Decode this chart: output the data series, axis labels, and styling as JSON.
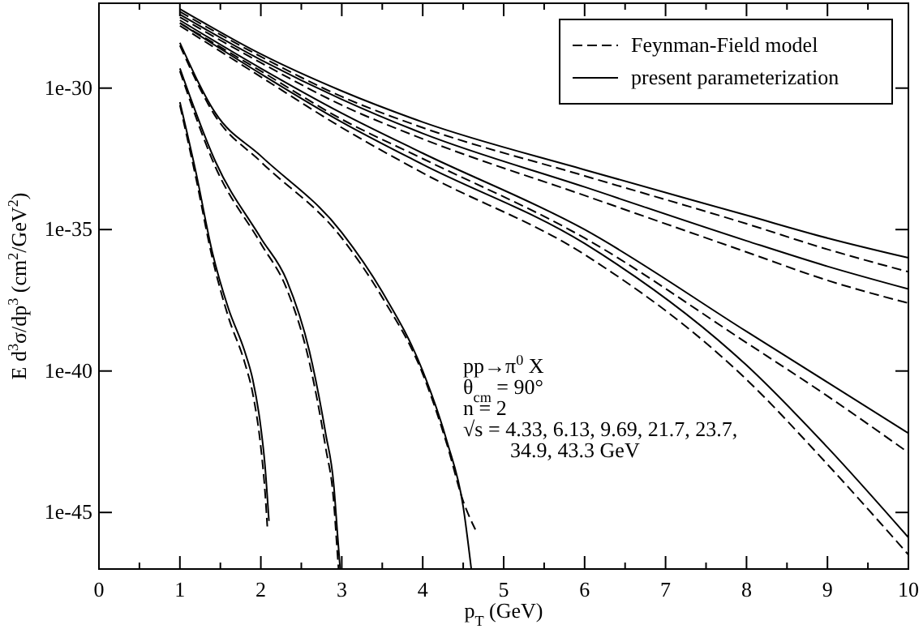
{
  "chart_data": {
    "type": "line",
    "xlabel": "p$_{T}$ (GeV)",
    "ylabel": "E d$^{3}$σ/dp$^{3}$ (cm$^{2}$/GeV$^{2}$)",
    "log": "y",
    "xlim": [
      0,
      10
    ],
    "ylim": [
      1e-47,
      1e-27
    ],
    "xticks": [
      0,
      {
        "value": 0.5,
        "label": null
      },
      1,
      {
        "value": 1.5,
        "label": null
      },
      2,
      {
        "value": 2.5,
        "label": null
      },
      3,
      {
        "value": 3.5,
        "label": null
      },
      4,
      {
        "value": 4.5,
        "label": null
      },
      5,
      {
        "value": 5.5,
        "label": null
      },
      6,
      {
        "value": 6.5,
        "label": null
      },
      7,
      {
        "value": 7.5,
        "label": null
      },
      8,
      {
        "value": 8.5,
        "label": null
      },
      9,
      {
        "value": 9.5,
        "label": null
      },
      10
    ],
    "yticks": [
      {
        "value": 1e-30,
        "label": "1e-30"
      },
      {
        "value": 1e-35,
        "label": "1e-35"
      },
      {
        "value": 1e-40,
        "label": "1e-40"
      },
      {
        "value": 1e-45,
        "label": "1e-45"
      }
    ],
    "grid": false,
    "legend": "top right",
    "marker": "none",
    "annotations": [
      {
        "text": "pp→π$^{0}$ X"
      },
      {
        "text": "θ$_{cm}$ = 90°"
      },
      {
        "text": "n = 2"
      },
      {
        "text": "√s = 4.33, 6.13, 9.69, 21.7, 23.7, 34.9, 43.3 GeV"
      }
    ],
    "series": [
      {
        "name": "Feynman-Field model",
        "color": "#000000",
        "line_style": "dashed",
        "x": [
          1,
          1.2,
          1.4,
          1.6,
          1.8,
          1.9,
          2.0,
          2.05,
          2.08
        ],
        "values": [
          2.5e-31,
          6.3e-34,
          1e-36,
          7.9e-39,
          2e-40,
          1.6e-41,
          2e-43,
          6.3e-45,
          3.2e-46
        ]
      },
      {
        "name": "present parameterization",
        "color": "#000000",
        "line_style": "solid",
        "x": [
          1,
          1.2,
          1.4,
          1.6,
          1.8,
          1.9,
          2.0,
          2.05,
          2.1
        ],
        "values": [
          3.2e-31,
          1e-33,
          1.6e-36,
          1.6e-38,
          5e-40,
          5e-41,
          1e-42,
          5e-44,
          5e-46
        ]
      },
      {
        "color": "#000000",
        "line_style": "dashed",
        "x": [
          1,
          1.44,
          2,
          2.32,
          2.6,
          2.8,
          2.9,
          2.94,
          2.96
        ],
        "values": [
          4e-30,
          1.6e-33,
          3.2e-36,
          7.9e-38,
          2e-40,
          2e-43,
          2.5e-45,
          6.3e-47,
          1e-47
        ]
      },
      {
        "color": "#000000",
        "line_style": "solid",
        "x": [
          1,
          1.44,
          2,
          2.32,
          2.6,
          2.8,
          2.9,
          2.95,
          2.98
        ],
        "values": [
          5e-30,
          2.5e-33,
          5e-36,
          1.6e-37,
          5e-40,
          6.3e-43,
          1e-44,
          1.3e-46,
          1e-47
        ]
      },
      {
        "color": "#000000",
        "line_style": "dashed",
        "x": [
          1,
          1.44,
          2,
          3,
          3.5,
          4,
          4.3,
          4.5,
          4.65
        ],
        "values": [
          3.2e-29,
          1e-31,
          2.5e-33,
          5e-36,
          4e-38,
          7.9e-41,
          2.5e-43,
          2.5e-45,
          2.5e-46
        ]
      },
      {
        "color": "#000000",
        "line_style": "solid",
        "x": [
          1,
          1.44,
          2,
          3,
          3.5,
          4,
          4.3,
          4.5,
          4.6
        ],
        "values": [
          4e-29,
          1.3e-31,
          4e-33,
          7.9e-36,
          6.3e-38,
          1e-40,
          3.2e-43,
          1.6e-45,
          1e-47
        ]
      },
      {
        "color": "#000000",
        "line_style": "dashed",
        "x": [
          1,
          2,
          3,
          4,
          6,
          8,
          9,
          10
        ],
        "values": [
          1.6e-28,
          2.5e-30,
          4e-32,
          1e-33,
          1.3e-36,
          5e-41,
          5e-44,
          3.2e-47
        ]
      },
      {
        "color": "#000000",
        "line_style": "solid",
        "x": [
          1,
          2,
          3,
          4,
          6,
          8,
          9,
          10
        ],
        "values": [
          2e-28,
          3.2e-30,
          6.3e-32,
          2e-33,
          3.2e-36,
          1.6e-40,
          2e-43,
          1.3e-46
        ]
      },
      {
        "color": "#000000",
        "line_style": "dashed",
        "x": [
          1,
          2,
          3,
          4,
          6,
          8,
          9,
          10
        ],
        "values": [
          2e-28,
          4e-30,
          7.9e-32,
          3.2e-33,
          5e-36,
          1e-39,
          1.3e-41,
          1.3e-43
        ]
      },
      {
        "color": "#000000",
        "line_style": "solid",
        "x": [
          1,
          2,
          3,
          4,
          6,
          8,
          9,
          10
        ],
        "values": [
          2.5e-28,
          5e-30,
          1.3e-31,
          5e-33,
          1e-35,
          2.5e-39,
          4e-41,
          6.3e-43
        ]
      },
      {
        "color": "#000000",
        "line_style": "dashed",
        "x": [
          1,
          2,
          3,
          4,
          6,
          8,
          9,
          10
        ],
        "values": [
          3.2e-28,
          7.9e-30,
          2.5e-31,
          1.6e-32,
          1.6e-34,
          1.6e-36,
          1.6e-37,
          2.5e-38
        ]
      },
      {
        "color": "#000000",
        "line_style": "solid",
        "x": [
          1,
          2,
          3,
          4,
          6,
          8,
          9,
          10
        ],
        "values": [
          4e-28,
          1e-29,
          4e-31,
          2.5e-32,
          3.2e-34,
          4e-36,
          5e-37,
          7.9e-38
        ]
      },
      {
        "color": "#000000",
        "line_style": "dashed",
        "x": [
          1,
          2,
          3,
          4,
          6,
          8,
          9,
          10
        ],
        "values": [
          5e-28,
          1.3e-29,
          5e-31,
          4e-32,
          7.9e-34,
          1.6e-35,
          2e-36,
          3.2e-37
        ]
      },
      {
        "color": "#000000",
        "line_style": "solid",
        "x": [
          1,
          2,
          3,
          4,
          6,
          8,
          9,
          10
        ],
        "values": [
          6.3e-28,
          1.6e-29,
          7.9e-31,
          6.3e-32,
          1.3e-33,
          3.2e-35,
          5e-36,
          1e-36
        ]
      }
    ]
  }
}
